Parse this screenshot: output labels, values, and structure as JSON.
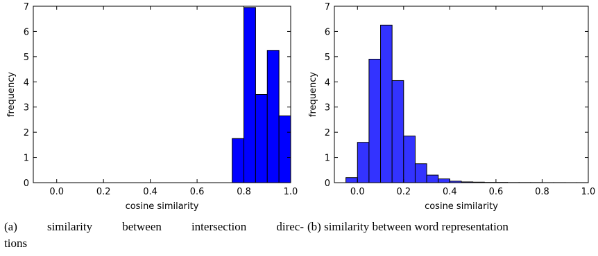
{
  "chart_data": [
    {
      "type": "bar",
      "id": "a",
      "bin_edges": [
        0.75,
        0.8,
        0.85,
        0.9,
        0.95,
        1.0
      ],
      "values": [
        1.75,
        6.95,
        3.5,
        5.25,
        2.65
      ],
      "xlabel": "cosine similarity",
      "ylabel": "frequency",
      "xlim": [
        -0.1,
        1.0
      ],
      "ylim": [
        0,
        7
      ],
      "xticks": [
        "0.0",
        "0.2",
        "0.4",
        "0.6",
        "0.8",
        "1.0"
      ],
      "xtick_values": [
        0.0,
        0.2,
        0.4,
        0.6,
        0.8,
        1.0
      ],
      "yticks": [
        "0",
        "1",
        "2",
        "3",
        "4",
        "5",
        "6",
        "7"
      ],
      "ytick_values": [
        0,
        1,
        2,
        3,
        4,
        5,
        6,
        7
      ],
      "bar_color": "#0000ff",
      "grid": false
    },
    {
      "type": "bar",
      "id": "b",
      "bin_edges": [
        -0.05,
        0.0,
        0.05,
        0.1,
        0.15,
        0.2,
        0.25,
        0.3,
        0.35,
        0.4,
        0.45,
        0.5,
        0.55,
        0.6,
        0.65,
        0.7,
        0.75,
        0.8,
        0.85,
        0.9,
        0.95,
        1.0
      ],
      "values": [
        0.2,
        1.6,
        4.9,
        6.25,
        4.05,
        1.85,
        0.75,
        0.3,
        0.15,
        0.06,
        0.03,
        0.02,
        0.01,
        0.01,
        0.005,
        0.005,
        0.005,
        0.003,
        0.003,
        0.002,
        0.002
      ],
      "xlabel": "cosine similarity",
      "ylabel": "frequency",
      "xlim": [
        -0.1,
        1.0
      ],
      "ylim": [
        0,
        7
      ],
      "xticks": [
        "0.0",
        "0.2",
        "0.4",
        "0.6",
        "0.8",
        "1.0"
      ],
      "xtick_values": [
        0.0,
        0.2,
        0.4,
        0.6,
        0.8,
        1.0
      ],
      "yticks": [
        "0",
        "1",
        "2",
        "3",
        "4",
        "5",
        "6",
        "7"
      ],
      "ytick_values": [
        0,
        1,
        2,
        3,
        4,
        5,
        6,
        7
      ],
      "bar_color": "#3333ff",
      "grid": false
    }
  ],
  "captions": {
    "a_line1": "(a) similarity between intersection direc-",
    "a_line2": "tions",
    "b": "(b) similarity between word representation"
  }
}
